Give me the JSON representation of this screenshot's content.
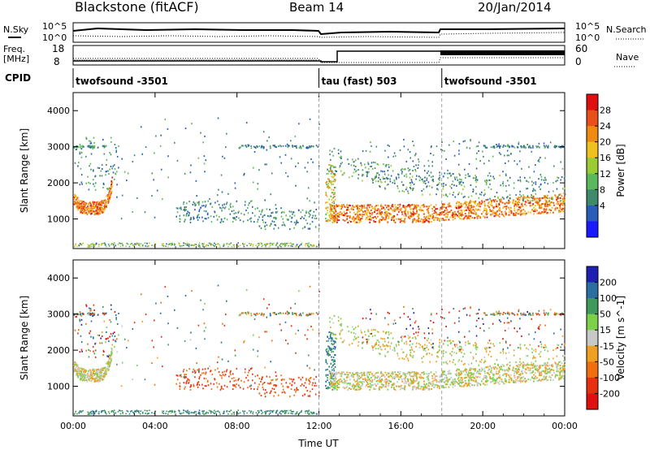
{
  "header": {
    "station": "Blackstone (fitACF)",
    "beam": "Beam 14",
    "date": "20/Jan/2014"
  },
  "status_panel": {
    "nsky_label": "N.Sky",
    "nsearch_label": "N.Search",
    "freq_label_line1": "Freq.",
    "freq_label_line2": "[MHz]",
    "nave_label": "Nave",
    "cpid_label": "CPID",
    "noise_ticks_left": [
      "10^5",
      "10^0"
    ],
    "noise_ticks_right": [
      "10^5",
      "10^0"
    ],
    "freq_ticks": [
      "18",
      "8"
    ],
    "nave_ticks": [
      "60",
      "0"
    ],
    "cpid_segments": [
      {
        "name": "twofsound -3501",
        "start_hour": 0,
        "end_hour": 12.0
      },
      {
        "name": "tau (fast) 503",
        "start_hour": 12.0,
        "end_hour": 18.0
      },
      {
        "name": "twofsound -3501",
        "start_hour": 18.0,
        "end_hour": 24.0
      }
    ]
  },
  "chart_data": [
    {
      "type": "heatmap",
      "panel": "power",
      "ylabel": "Slant Range [km]",
      "y_ticks": [
        1000,
        2000,
        3000,
        4000
      ],
      "ylim": [
        180,
        4500
      ],
      "xlim_hours": [
        0,
        24
      ],
      "colorbar": {
        "label": "Power [dB]",
        "ticks": [
          "28",
          "24",
          "20",
          "16",
          "12",
          "8",
          "4"
        ],
        "colors_bottom_to_top": [
          "#1a1aff",
          "#2a5db8",
          "#3f8a6a",
          "#5cb85c",
          "#9acd32",
          "#f0c020",
          "#f08a10",
          "#e8501a",
          "#e01010"
        ]
      },
      "features": [
        {
          "name": "nightside backscatter band",
          "hours": [
            0.0,
            1.9
          ],
          "range_km": [
            1100,
            1600
          ],
          "power_db": [
            20,
            30
          ]
        },
        {
          "name": "late band",
          "hours": [
            12.4,
            24.0
          ],
          "range_km": [
            900,
            1600
          ],
          "power_db": [
            18,
            30
          ]
        },
        {
          "name": "ground/ionospheric clutter",
          "hours": [
            5.0,
            12.0
          ],
          "range_km": [
            700,
            1300
          ],
          "power_db": [
            4,
            12
          ]
        }
      ]
    },
    {
      "type": "heatmap",
      "panel": "velocity",
      "ylabel": "Slant Range [km]",
      "xlabel": "Time UT",
      "x_ticks": [
        "00:00",
        "04:00",
        "08:00",
        "12:00",
        "16:00",
        "20:00",
        "00:00"
      ],
      "y_ticks": [
        1000,
        2000,
        3000,
        4000
      ],
      "ylim": [
        180,
        4500
      ],
      "xlim_hours": [
        0,
        24
      ],
      "colorbar": {
        "label": "Velocity [m s^-1]",
        "ticks": [
          "200",
          "100",
          "50",
          "15",
          "-15",
          "-50",
          "-100",
          "-200"
        ],
        "colors_top_to_bottom": [
          "#2020b0",
          "#2a6fa0",
          "#3d9a5a",
          "#7dd04a",
          "#c8c8c8",
          "#f0a020",
          "#f07010",
          "#e83010",
          "#e01010"
        ]
      },
      "features": [
        {
          "name": "low velocity ground scatter",
          "hours": [
            12.4,
            24.0
          ],
          "range_km": [
            1000,
            1600
          ],
          "velocity": [
            -15,
            15
          ]
        },
        {
          "name": "positive velocity band",
          "hours": [
            12.3,
            13.2
          ],
          "range_km": [
            900,
            2400
          ],
          "velocity": [
            50,
            100
          ]
        },
        {
          "name": "negative velocity patch",
          "hours": [
            9.0,
            12.0
          ],
          "range_km": [
            700,
            1200
          ],
          "velocity": [
            -100,
            -50
          ]
        }
      ]
    }
  ]
}
